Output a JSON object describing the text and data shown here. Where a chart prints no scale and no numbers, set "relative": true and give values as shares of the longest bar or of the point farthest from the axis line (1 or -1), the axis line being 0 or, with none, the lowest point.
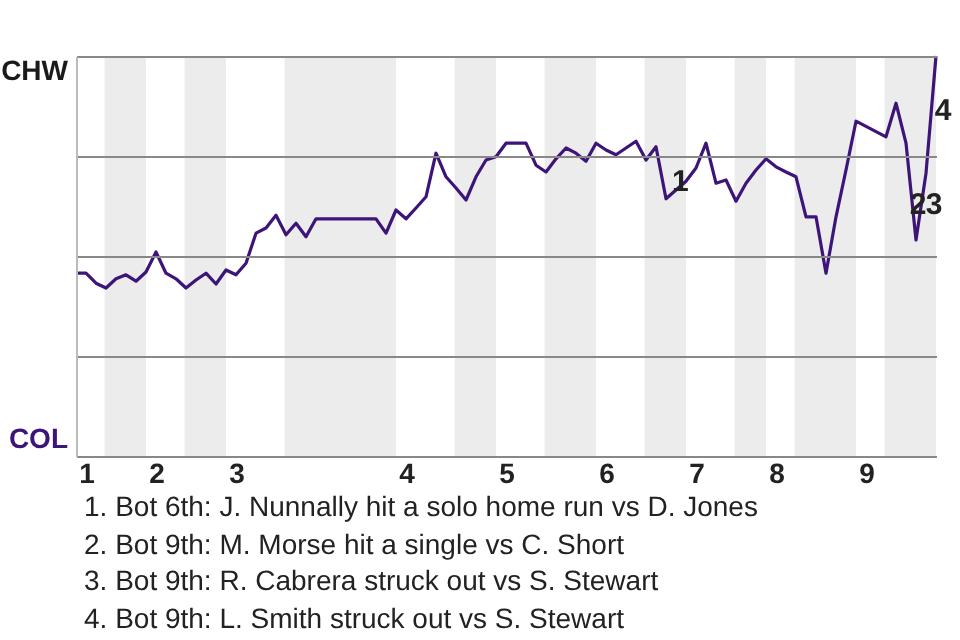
{
  "chart_data": {
    "type": "line",
    "relative": true,
    "categories": [
      null,
      "1",
      null,
      null,
      null,
      null,
      null,
      null,
      "2",
      null,
      null,
      null,
      null,
      null,
      null,
      null,
      "3",
      null,
      null,
      null,
      null,
      null,
      null,
      null,
      null,
      null,
      null,
      null,
      null,
      null,
      null,
      null,
      null,
      "4",
      null,
      null,
      null,
      null,
      null,
      null,
      null,
      null,
      null,
      "5",
      null,
      null,
      null,
      null,
      null,
      null,
      null,
      null,
      null,
      "6",
      null,
      null,
      null,
      null,
      null,
      null,
      null,
      null,
      "7",
      null,
      null,
      null,
      null,
      null,
      null,
      null,
      "8",
      null,
      null,
      null,
      null,
      null,
      null,
      null,
      null,
      "9",
      null,
      null,
      null,
      null,
      null,
      null,
      null
    ],
    "grid": "y",
    "color": "#3d1478",
    "values": [
      0.457,
      0.457,
      0.432,
      0.42,
      0.443,
      0.453,
      0.437,
      0.46,
      0.51,
      0.457,
      0.443,
      0.42,
      0.44,
      0.457,
      0.43,
      0.465,
      0.453,
      0.482,
      0.557,
      0.57,
      0.602,
      0.553,
      0.582,
      0.548,
      0.593,
      0.593,
      0.593,
      0.593,
      0.593,
      0.593,
      0.593,
      0.557,
      0.615,
      0.593,
      0.62,
      0.648,
      0.757,
      0.698,
      0.67,
      0.64,
      0.698,
      0.74,
      0.748,
      0.782,
      0.782,
      0.782,
      0.727,
      0.71,
      0.743,
      0.77,
      0.757,
      0.737,
      0.782,
      0.765,
      0.753,
      0.77,
      0.787,
      0.74,
      0.773,
      0.643,
      0.665,
      0.687,
      0.72,
      0.782,
      0.682,
      0.69,
      0.637,
      0.682,
      0.715,
      0.743,
      0.723,
      0.71,
      0.698,
      0.598,
      0.598,
      0.457,
      0.598,
      0.715,
      0.837,
      0.824,
      0.811,
      0.798,
      0.882,
      0.782,
      0.54,
      0.707,
      1
    ],
    "annotations": [
      "CHW",
      "COL",
      {
        "text": "1",
        "y": 0.643
      },
      "2",
      "3",
      "4",
      "1. Bot 6th: J. Nunnally hit a solo home run vs D. Jones",
      "2. Bot 9th: M. Morse hit a single vs C. Short",
      "3. Bot 9th: R. Cabrera struck out vs S. Stewart",
      "4. Bot 9th: L. Smith struck out vs S. Stewart"
    ]
  }
}
